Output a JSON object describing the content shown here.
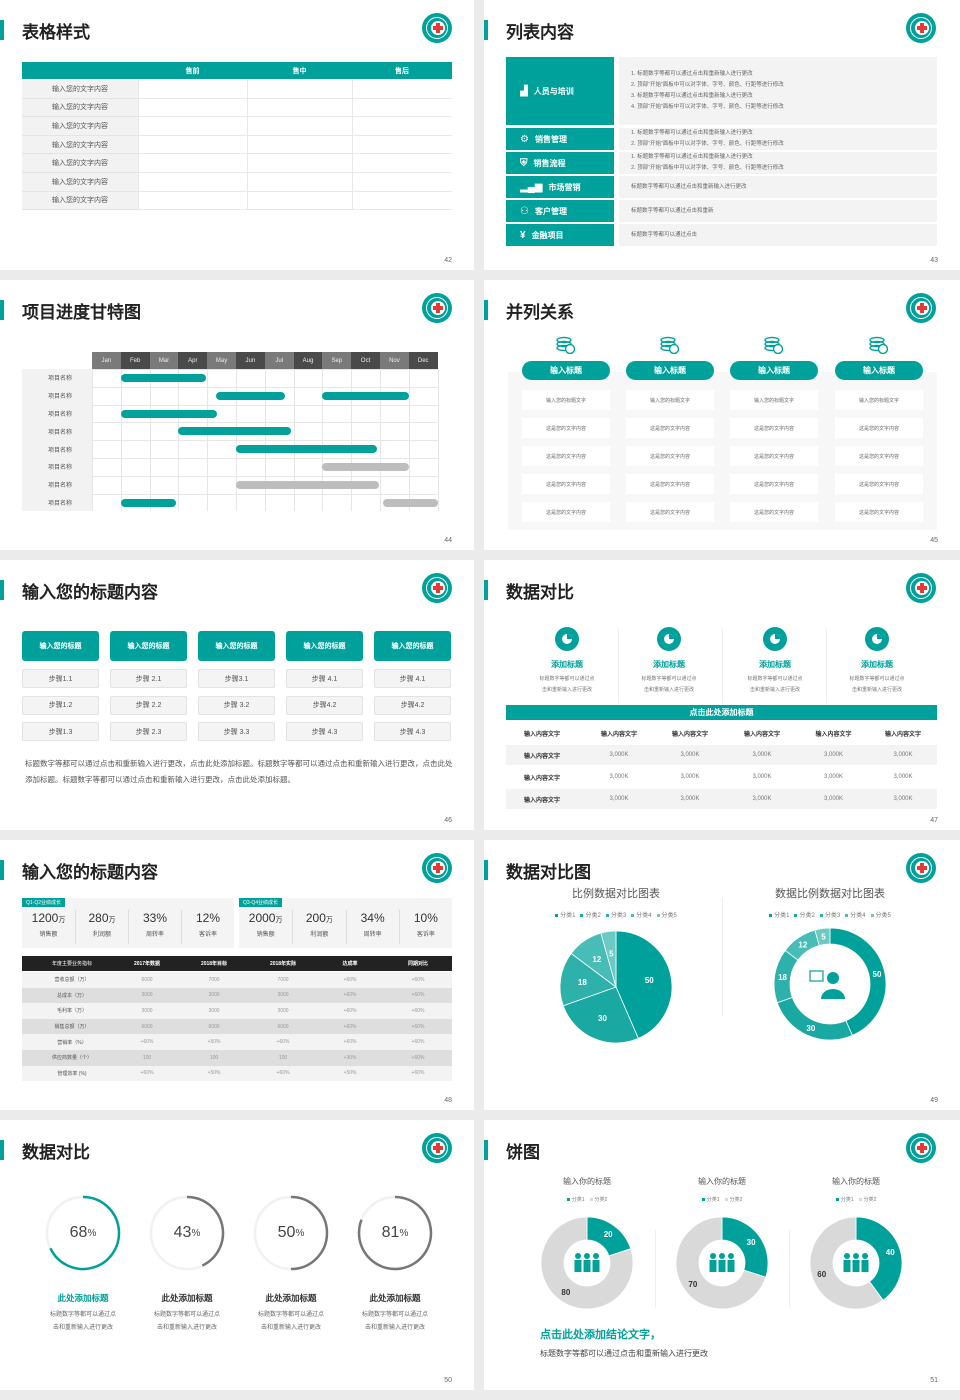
{
  "colors": {
    "accent": "#00a19b",
    "dark": "#222222",
    "gray": "#d9d9d9",
    "ring_gray": "#777777"
  },
  "slides": [
    {
      "title": "表格样式",
      "page": "42",
      "table": {
        "headers": [
          "",
          "售前",
          "售中",
          "售后"
        ],
        "rows": [
          "输入您的文字内容",
          "输入您的文字内容",
          "输入您的文字内容",
          "输入您的文字内容",
          "输入您的文字内容",
          "输入您的文字内容",
          "输入您的文字内容"
        ]
      }
    },
    {
      "title": "列表内容",
      "page": "43",
      "items": [
        {
          "icon": "training-icon",
          "label": "人员与培训",
          "lines": [
            "1.   标题数字等都可以通过点击和重新输入进行更改",
            "2.   顶部“开始”面板中可以对字体、字号、颜色、行距等进行修改",
            "3.   标题数字等都可以通过点击和重新输入进行更改",
            "4.   顶部“开始”面板中可以对字体、字号、颜色、行距等进行修改"
          ]
        },
        {
          "icon": "user-gear-icon",
          "label": "销售管理",
          "lines": [
            "1.   标题数字等都可以通过点击和重新输入进行更改",
            "2.   顶部“开始”面板中可以对字体、字号、颜色、行距等进行修改"
          ]
        },
        {
          "icon": "shield-icon",
          "label": "销售流程",
          "lines": [
            "1.   标题数字等都可以通过点击和重新输入进行更改",
            "2.   顶部“开始”面板中可以对字体、字号、颜色、行距等进行修改"
          ]
        },
        {
          "icon": "bar-chart-icon",
          "label": "市场营销",
          "lines": [
            "标题数字等都可以通过点击和重新输入进行更改"
          ]
        },
        {
          "icon": "users-icon",
          "label": "客户管理",
          "lines": [
            "标题数字等都可以通过点击和重新"
          ]
        },
        {
          "icon": "money-hand-icon",
          "label": "金融项目",
          "lines": [
            "标题数字等都可以通过点击"
          ]
        }
      ]
    },
    {
      "title": "项目进度甘特图",
      "page": "44",
      "months": [
        "Jan",
        "Feb",
        "Mar",
        "Apr",
        "May",
        "Jun",
        "Jul",
        "Aug",
        "Sep",
        "Oct",
        "Nov",
        "Dec"
      ],
      "tasks": [
        {
          "name": "项目名称",
          "bars": [
            {
              "start": 1,
              "end": 3.95,
              "status": "active"
            }
          ]
        },
        {
          "name": "项目名称",
          "bars": [
            {
              "start": 4.3,
              "end": 6.7,
              "status": "active"
            },
            {
              "start": 8,
              "end": 11,
              "status": "active"
            }
          ]
        },
        {
          "name": "项目名称",
          "bars": [
            {
              "start": 1,
              "end": 4.35,
              "status": "active"
            }
          ]
        },
        {
          "name": "项目名称",
          "bars": [
            {
              "start": 3,
              "end": 6.9,
              "status": "active"
            }
          ]
        },
        {
          "name": "项目名称",
          "bars": [
            {
              "start": 5,
              "end": 9.9,
              "status": "active"
            }
          ]
        },
        {
          "name": "项目名称",
          "bars": [
            {
              "start": 8,
              "end": 11,
              "status": "planned"
            }
          ]
        },
        {
          "name": "项目名称",
          "bars": [
            {
              "start": 5,
              "end": 9.95,
              "status": "planned"
            }
          ]
        },
        {
          "name": "项目名称",
          "bars": [
            {
              "start": 1,
              "end": 2.9,
              "status": "active"
            },
            {
              "start": 10.1,
              "end": 12,
              "status": "planned"
            }
          ]
        }
      ]
    },
    {
      "title": "并列关系",
      "page": "45",
      "columns": [
        {
          "header": "输入标题",
          "cells": [
            "输入您的标题文字",
            "这是您的文字内容",
            "这是您的文字内容",
            "这是您的文字内容",
            "这是您的文字内容"
          ]
        },
        {
          "header": "输入标题",
          "cells": [
            "输入您的标题文字",
            "这是您的文字内容",
            "这是您的文字内容",
            "这是您的文字内容",
            "这是您的文字内容"
          ]
        },
        {
          "header": "输入标题",
          "cells": [
            "输入您的标题文字",
            "这是您的文字内容",
            "这是您的文字内容",
            "这是您的文字内容",
            "这是您的文字内容"
          ]
        },
        {
          "header": "输入标题",
          "cells": [
            "输入您的标题文字",
            "这是您的文字内容",
            "这是您的文字内容",
            "这是您的文字内容",
            "这是您的文字内容"
          ]
        }
      ]
    },
    {
      "title": "输入您的标题内容",
      "page": "46",
      "columns": [
        {
          "header": "输入您的标题",
          "steps": [
            "步骤1.1",
            "步骤1.2",
            "步骤1.3"
          ]
        },
        {
          "header": "输入您的标题",
          "steps": [
            "步骤 2.1",
            "步骤 2.2",
            "步骤 2.3"
          ]
        },
        {
          "header": "输入您的标题",
          "steps": [
            "步骤3.1",
            "步骤 3.2",
            "步骤 3.3"
          ]
        },
        {
          "header": "输入您的标题",
          "steps": [
            "步骤 4.1",
            "步骤4.2",
            "步骤 4.3"
          ]
        },
        {
          "header": "输入您的标题",
          "steps": [
            "步骤 4.1",
            "步骤4.2",
            "步骤 4.3"
          ]
        }
      ],
      "paragraph": "标题数字等都可以通过点击和重新输入进行更改，点击此处添加标题。标题数字等都可以通过点击和重新输入进行更改，点击此处添加标题。标题数字等都可以通过点击和重新输入进行更改，点击此处添加标题。"
    },
    {
      "title": "数据对比",
      "page": "47",
      "features": [
        {
          "title": "添加标题",
          "desc": [
            "标题数字等都可以通过点",
            "击和重新输入进行更改"
          ]
        },
        {
          "title": "添加标题",
          "desc": [
            "标题数字等都可以通过点",
            "击和重新输入进行更改"
          ]
        },
        {
          "title": "添加标题",
          "desc": [
            "标题数字等都可以通过点",
            "击和重新输入进行更改"
          ]
        },
        {
          "title": "添加标题",
          "desc": [
            "标题数字等都可以通过点",
            "击和重新输入进行更改"
          ]
        }
      ],
      "bar_title": "点击此处添加标题",
      "headers": [
        "输入内容文字",
        "输入内容文字",
        "输入内容文字",
        "输入内容文字",
        "输入内容文字",
        "输入内容文字"
      ],
      "rows": [
        [
          "输入内容文字",
          "3,000K",
          "3,000K",
          "3,000K",
          "3,000K",
          "3,000K"
        ],
        [
          "输入内容文字",
          "3,000K",
          "3,000K",
          "3,000K",
          "3,000K",
          "3,000K"
        ],
        [
          "输入内容文字",
          "3,000K",
          "3,000K",
          "3,000K",
          "3,000K",
          "3,000K"
        ]
      ]
    },
    {
      "title": "输入您的标题内容",
      "page": "48",
      "cards": [
        {
          "tag": "Q1-Q2业绩成长",
          "stats": [
            {
              "value": "1200",
              "unit": "万",
              "label": "销售额"
            },
            {
              "value": "280",
              "unit": "万",
              "label": "利润额"
            },
            {
              "value": "33%",
              "unit": "",
              "label": "周转率"
            },
            {
              "value": "12%",
              "unit": "",
              "label": "客诉率"
            }
          ]
        },
        {
          "tag": "Q3-Q4业绩成长",
          "stats": [
            {
              "value": "2000",
              "unit": "万",
              "label": "销售额"
            },
            {
              "value": "200",
              "unit": "万",
              "label": "利润额"
            },
            {
              "value": "34%",
              "unit": "",
              "label": "周转率"
            },
            {
              "value": "10%",
              "unit": "",
              "label": "客诉率"
            }
          ]
        }
      ],
      "table": {
        "headers": [
          "年度主要业务指标",
          "2017年数据",
          "2018年目标",
          "2018年实际",
          "达成率",
          "同期对比"
        ],
        "rows": [
          [
            "营收总额（万）",
            "6000",
            "7000",
            "7000",
            "+60%",
            "+60%"
          ],
          [
            "总成本（万）",
            "3000",
            "3000",
            "3000",
            "+60%",
            "+60%"
          ],
          [
            "毛利率（万）",
            "3000",
            "3000",
            "3000",
            "+60%",
            "+60%"
          ],
          [
            "销售总额（万）",
            "6000",
            "6000",
            "6000",
            "+60%",
            "+60%"
          ],
          [
            "营销率（%）",
            "+60%",
            "+50%",
            "+60%",
            "+60%",
            "+60%"
          ],
          [
            "供应商数量（个）",
            "100",
            "100",
            "100",
            "+30%",
            "+60%"
          ],
          [
            "管理效率 (%)",
            "+60%",
            "+50%",
            "+60%",
            "+50%",
            "+60%"
          ]
        ]
      }
    },
    {
      "title": "数据对比图",
      "page": "49"
    },
    {
      "title": "数据对比",
      "page": "50",
      "rings": [
        {
          "value": 68,
          "label": "68",
          "unit": "%",
          "title": "此处添加标题",
          "desc": [
            "标题数字等都可以通过点",
            "击和重新输入进行更改"
          ],
          "highlight": true
        },
        {
          "value": 43,
          "label": "43",
          "unit": "%",
          "title": "此处添加标题",
          "desc": [
            "标题数字等都可以通过点",
            "击和重新输入进行更改"
          ],
          "highlight": false
        },
        {
          "value": 50,
          "label": "50",
          "unit": "%",
          "title": "此处添加标题",
          "desc": [
            "标题数字等都可以通过点",
            "击和重新输入进行更改"
          ],
          "highlight": false
        },
        {
          "value": 81,
          "label": "81",
          "unit": "%",
          "title": "此处添加标题",
          "desc": [
            "标题数字等都可以通过点",
            "击和重新输入进行更改"
          ],
          "highlight": false
        }
      ]
    },
    {
      "title": "饼图",
      "page": "51",
      "conclusion": "点击此处添加结论文字，",
      "conclusion_text": "标题数字等都可以通过点击和重新输入进行更改"
    }
  ],
  "chart_data": [
    {
      "type": "pie",
      "title": "比例数据对比图表",
      "categories": [
        "分类1",
        "分类2",
        "分类3",
        "分类4",
        "分类5"
      ],
      "values": [
        50,
        30,
        18,
        12,
        5
      ],
      "colors": [
        "#00a19b",
        "#1aa8a2",
        "#2eb1ab",
        "#48bdb7",
        "#6ccac5"
      ],
      "legend": "top"
    },
    {
      "type": "pie",
      "donut": true,
      "title": "数据比例数据对比图表",
      "categories": [
        "分类1",
        "分类2",
        "分类3",
        "分类4",
        "分类5"
      ],
      "values": [
        50,
        30,
        18,
        12,
        5
      ],
      "colors": [
        "#00a19b",
        "#1aa8a2",
        "#2eb1ab",
        "#48bdb7",
        "#6ccac5"
      ],
      "legend": "top",
      "center_icon": "customer-service-icon"
    },
    {
      "type": "pie",
      "donut": true,
      "title": "输入你的标题",
      "categories": [
        "分类1",
        "分类2"
      ],
      "values": [
        20,
        80
      ],
      "colors": [
        "#00a19b",
        "#d9d9d9"
      ],
      "legend": "top",
      "center_icon": "team-icon"
    },
    {
      "type": "pie",
      "donut": true,
      "title": "输入你的标题",
      "categories": [
        "分类1",
        "分类2"
      ],
      "values": [
        30,
        70
      ],
      "colors": [
        "#00a19b",
        "#d9d9d9"
      ],
      "legend": "top",
      "center_icon": "team-icon"
    },
    {
      "type": "pie",
      "donut": true,
      "title": "输入你的标题",
      "categories": [
        "分类1",
        "分类2"
      ],
      "values": [
        40,
        60
      ],
      "colors": [
        "#00a19b",
        "#d9d9d9"
      ],
      "legend": "top",
      "center_icon": "team-icon"
    }
  ]
}
